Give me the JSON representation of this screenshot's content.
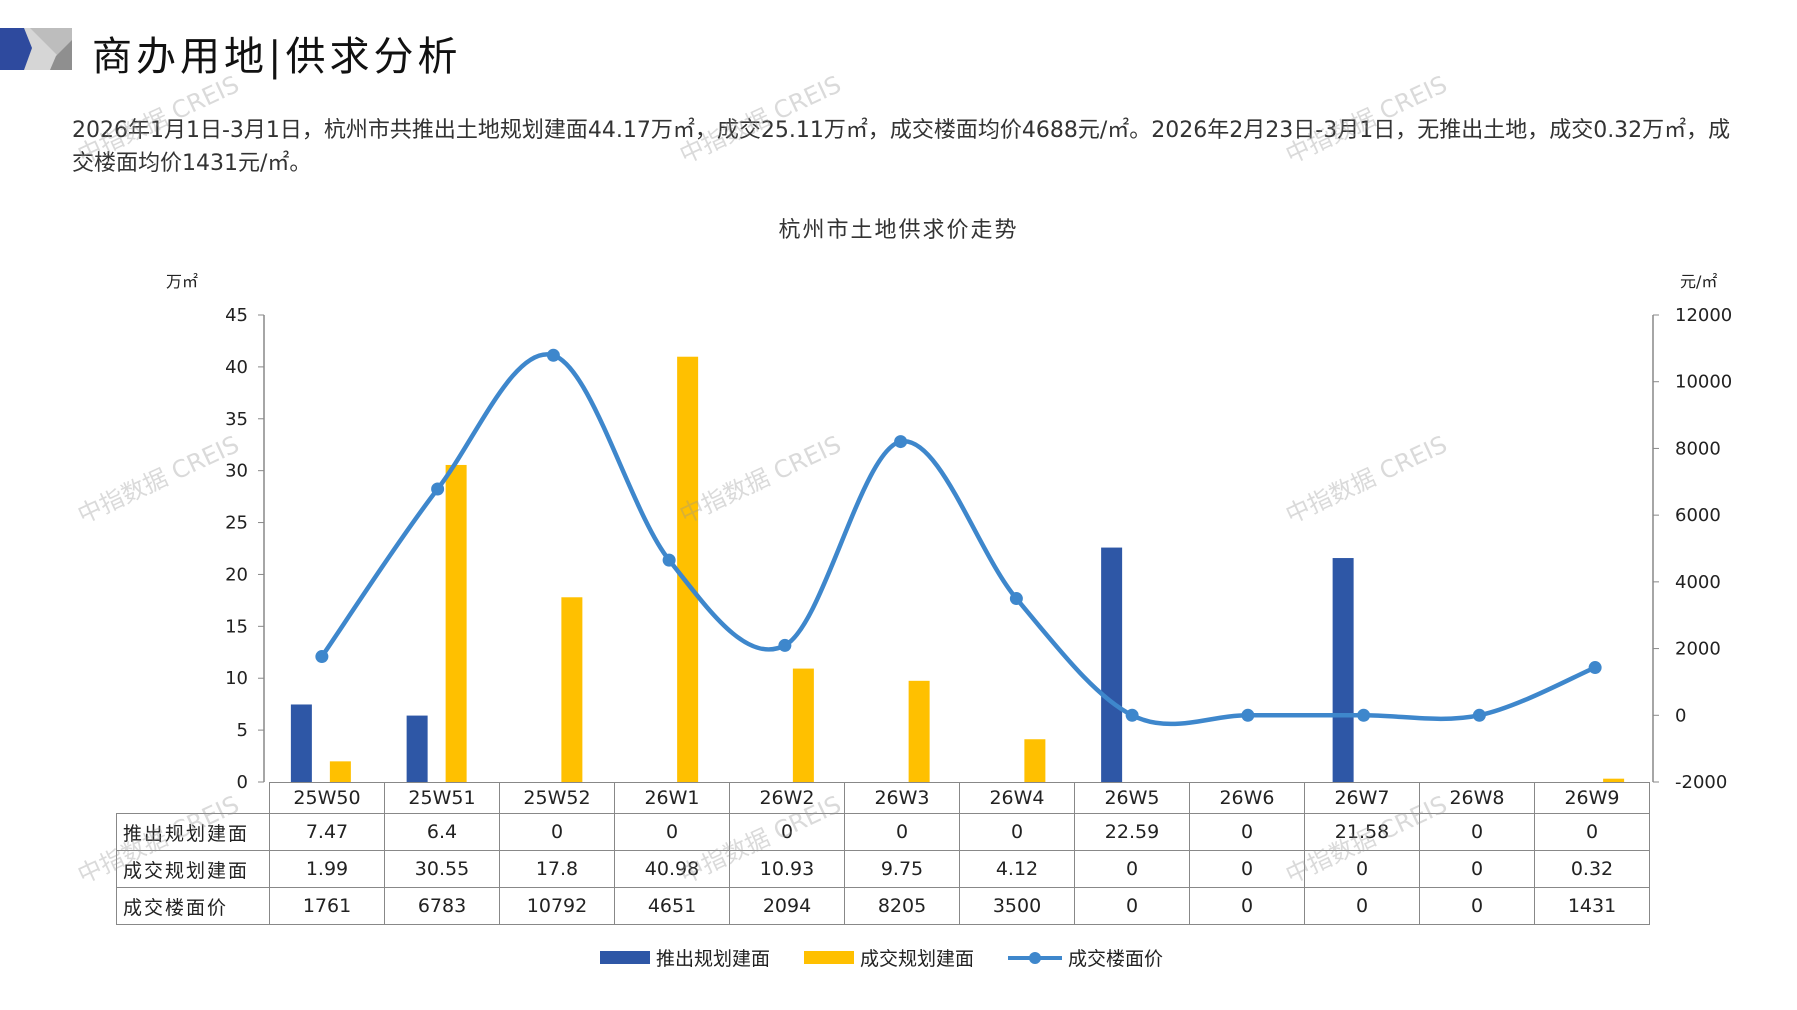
{
  "header": {
    "title": "商办用地|供求分析"
  },
  "summary": "2026年1月1日-3月1日，杭州市共推出土地规划建面44.17万㎡，成交25.11万㎡，成交楼面均价4688元/㎡。2026年2月23日-3月1日，无推出土地，成交0.32万㎡，成交楼面均价1431元/㎡。",
  "watermark": "中指数据 CREIS",
  "colors": {
    "supply": "#2E57A6",
    "deal": "#FFC000",
    "price": "#3E87CC",
    "logo_blue": "#2E4A9E"
  },
  "chart_data": {
    "type": "bar+line",
    "title": "杭州市土地供求价走势",
    "ylabel_left": "万㎡",
    "ylabel_right": "元/㎡",
    "ylim_left": [
      0,
      45
    ],
    "yticks_left": [
      0,
      5,
      10,
      15,
      20,
      25,
      30,
      35,
      40,
      45
    ],
    "ylim_right": [
      -2000,
      12000
    ],
    "yticks_right": [
      -2000,
      0,
      2000,
      4000,
      6000,
      8000,
      10000,
      12000
    ],
    "categories": [
      "25W50",
      "25W51",
      "25W52",
      "26W1",
      "26W2",
      "26W3",
      "26W4",
      "26W5",
      "26W6",
      "26W7",
      "26W8",
      "26W9"
    ],
    "series": [
      {
        "name": "推出规划建面",
        "type": "bar",
        "axis": "left",
        "values": [
          7.47,
          6.4,
          0,
          0,
          0,
          0,
          0,
          22.59,
          0,
          21.58,
          0,
          0
        ]
      },
      {
        "name": "成交规划建面",
        "type": "bar",
        "axis": "left",
        "values": [
          1.99,
          30.55,
          17.8,
          40.98,
          10.93,
          9.75,
          4.12,
          0,
          0,
          0,
          0,
          0.32
        ]
      },
      {
        "name": "成交楼面价",
        "type": "line",
        "axis": "right",
        "values": [
          1761,
          6783,
          10792,
          4651,
          2094,
          8205,
          3500,
          0,
          0,
          0,
          0,
          1431
        ]
      }
    ],
    "table_labels": [
      "7.47",
      "6.4",
      "0",
      "0",
      "0",
      "0",
      "0",
      "22.59",
      "0",
      "21.58",
      "0",
      "0"
    ],
    "table_rows": [
      [
        "7.47",
        "6.4",
        "0",
        "0",
        "0",
        "0",
        "0",
        "22.59",
        "0",
        "21.58",
        "0",
        "0"
      ],
      [
        "1.99",
        "30.55",
        "17.8",
        "40.98",
        "10.93",
        "9.75",
        "4.12",
        "0",
        "0",
        "0",
        "0",
        "0.32"
      ],
      [
        "1761",
        "6783",
        "10792",
        "4651",
        "2094",
        "8205",
        "3500",
        "0",
        "0",
        "0",
        "0",
        "1431"
      ]
    ],
    "legend_position": "bottom",
    "grid": false
  }
}
